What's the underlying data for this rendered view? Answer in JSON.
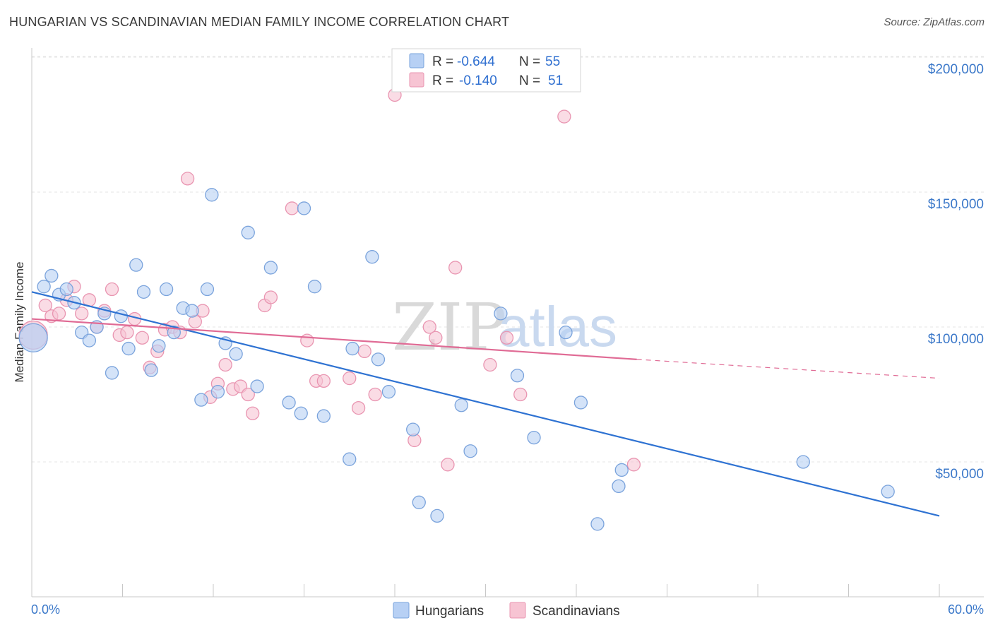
{
  "header": {
    "title": "HUNGARIAN VS SCANDINAVIAN MEDIAN FAMILY INCOME CORRELATION CHART",
    "source": "Source: ZipAtlas.com"
  },
  "watermark": {
    "zip": "ZIP",
    "atlas": "atlas"
  },
  "legend": {
    "r_label": "R =",
    "n_label": "N =",
    "series": [
      {
        "name": "Hungarians",
        "r": "-0.644",
        "n": "55"
      },
      {
        "name": "Scandinavians",
        "r": "-0.140",
        "n": "51"
      }
    ]
  },
  "colors": {
    "hungarian_fill": "#b7d0f4",
    "hungarian_stroke": "#7aa3dc",
    "hungarian_line": "#2e72d2",
    "scandinavian_fill": "#f7c4d3",
    "scandinavian_stroke": "#e995b1",
    "scandinavian_line": "#e06b95",
    "tick_text": "#3b78c9",
    "grid": "#e4e4e4"
  },
  "chart_data": {
    "type": "scatter",
    "title": "HUNGARIAN VS SCANDINAVIAN MEDIAN FAMILY INCOME CORRELATION CHART",
    "xlabel": "",
    "ylabel": "Median Family Income",
    "xlim": [
      0,
      60
    ],
    "ylim": [
      0,
      200000
    ],
    "x_tick_labels": [
      "0.0%",
      "60.0%"
    ],
    "y_ticks": [
      50000,
      100000,
      150000,
      200000
    ],
    "y_tick_labels": [
      "$50,000",
      "$100,000",
      "$150,000",
      "$200,000"
    ],
    "series": [
      {
        "name": "Hungarians",
        "trend": {
          "x": [
            0,
            60
          ],
          "y": [
            113000,
            30000
          ]
        },
        "points": [
          {
            "x": 0.1,
            "y": 96000,
            "big": true
          },
          {
            "x": 0.8,
            "y": 115000
          },
          {
            "x": 1.3,
            "y": 119000
          },
          {
            "x": 1.8,
            "y": 112000
          },
          {
            "x": 2.3,
            "y": 114000
          },
          {
            "x": 2.8,
            "y": 109000
          },
          {
            "x": 3.3,
            "y": 98000
          },
          {
            "x": 3.8,
            "y": 95000
          },
          {
            "x": 4.3,
            "y": 100000
          },
          {
            "x": 4.8,
            "y": 105000
          },
          {
            "x": 5.3,
            "y": 83000
          },
          {
            "x": 5.9,
            "y": 104000
          },
          {
            "x": 6.4,
            "y": 92000
          },
          {
            "x": 6.9,
            "y": 123000
          },
          {
            "x": 7.4,
            "y": 113000
          },
          {
            "x": 7.9,
            "y": 84000
          },
          {
            "x": 8.4,
            "y": 93000
          },
          {
            "x": 8.9,
            "y": 114000
          },
          {
            "x": 9.4,
            "y": 98000
          },
          {
            "x": 10.0,
            "y": 107000
          },
          {
            "x": 10.6,
            "y": 106000
          },
          {
            "x": 11.2,
            "y": 73000
          },
          {
            "x": 11.6,
            "y": 114000
          },
          {
            "x": 11.9,
            "y": 149000
          },
          {
            "x": 12.3,
            "y": 76000
          },
          {
            "x": 12.8,
            "y": 94000
          },
          {
            "x": 13.5,
            "y": 90000
          },
          {
            "x": 14.3,
            "y": 135000
          },
          {
            "x": 14.9,
            "y": 78000
          },
          {
            "x": 15.8,
            "y": 122000
          },
          {
            "x": 17.0,
            "y": 72000
          },
          {
            "x": 17.8,
            "y": 68000
          },
          {
            "x": 18.0,
            "y": 144000
          },
          {
            "x": 18.7,
            "y": 115000
          },
          {
            "x": 19.3,
            "y": 67000
          },
          {
            "x": 21.0,
            "y": 51000
          },
          {
            "x": 21.2,
            "y": 92000
          },
          {
            "x": 22.5,
            "y": 126000
          },
          {
            "x": 22.9,
            "y": 88000
          },
          {
            "x": 23.6,
            "y": 76000
          },
          {
            "x": 25.2,
            "y": 62000
          },
          {
            "x": 25.6,
            "y": 35000
          },
          {
            "x": 26.8,
            "y": 30000
          },
          {
            "x": 28.4,
            "y": 71000
          },
          {
            "x": 29.0,
            "y": 54000
          },
          {
            "x": 31.0,
            "y": 105000
          },
          {
            "x": 32.1,
            "y": 82000
          },
          {
            "x": 33.2,
            "y": 59000
          },
          {
            "x": 35.3,
            "y": 98000
          },
          {
            "x": 36.3,
            "y": 72000
          },
          {
            "x": 37.4,
            "y": 27000
          },
          {
            "x": 38.8,
            "y": 41000
          },
          {
            "x": 39.0,
            "y": 47000
          },
          {
            "x": 51.0,
            "y": 50000
          },
          {
            "x": 56.6,
            "y": 39000
          }
        ]
      },
      {
        "name": "Scandinavians",
        "trend": {
          "x": [
            0,
            40
          ],
          "y": [
            103000,
            88000
          ]
        },
        "trend_dashed": {
          "x": [
            40,
            60
          ],
          "y": [
            88000,
            81000
          ]
        },
        "points": [
          {
            "x": 0.1,
            "y": 97000,
            "big": true
          },
          {
            "x": 0.9,
            "y": 108000
          },
          {
            "x": 1.3,
            "y": 104000
          },
          {
            "x": 1.8,
            "y": 105000
          },
          {
            "x": 2.3,
            "y": 110000
          },
          {
            "x": 2.8,
            "y": 115000
          },
          {
            "x": 3.3,
            "y": 105000
          },
          {
            "x": 3.8,
            "y": 110000
          },
          {
            "x": 4.3,
            "y": 100000
          },
          {
            "x": 4.8,
            "y": 106000
          },
          {
            "x": 5.3,
            "y": 114000
          },
          {
            "x": 5.8,
            "y": 97000
          },
          {
            "x": 6.3,
            "y": 98000
          },
          {
            "x": 6.8,
            "y": 103000
          },
          {
            "x": 7.3,
            "y": 96000
          },
          {
            "x": 7.8,
            "y": 85000
          },
          {
            "x": 8.3,
            "y": 91000
          },
          {
            "x": 8.8,
            "y": 99000
          },
          {
            "x": 9.3,
            "y": 100000
          },
          {
            "x": 9.8,
            "y": 98000
          },
          {
            "x": 10.3,
            "y": 155000
          },
          {
            "x": 10.8,
            "y": 102000
          },
          {
            "x": 11.3,
            "y": 106000
          },
          {
            "x": 11.8,
            "y": 74000
          },
          {
            "x": 12.3,
            "y": 79000
          },
          {
            "x": 12.8,
            "y": 86000
          },
          {
            "x": 13.3,
            "y": 77000
          },
          {
            "x": 13.8,
            "y": 78000
          },
          {
            "x": 14.3,
            "y": 75000
          },
          {
            "x": 14.6,
            "y": 68000
          },
          {
            "x": 15.4,
            "y": 108000
          },
          {
            "x": 15.8,
            "y": 111000
          },
          {
            "x": 17.2,
            "y": 144000
          },
          {
            "x": 18.2,
            "y": 95000
          },
          {
            "x": 18.8,
            "y": 80000
          },
          {
            "x": 19.3,
            "y": 80000
          },
          {
            "x": 21.0,
            "y": 81000
          },
          {
            "x": 21.6,
            "y": 70000
          },
          {
            "x": 22.0,
            "y": 91000
          },
          {
            "x": 22.7,
            "y": 75000
          },
          {
            "x": 24.0,
            "y": 186000
          },
          {
            "x": 26.3,
            "y": 100000
          },
          {
            "x": 26.7,
            "y": 96000
          },
          {
            "x": 27.5,
            "y": 49000
          },
          {
            "x": 28.0,
            "y": 122000
          },
          {
            "x": 25.3,
            "y": 58000
          },
          {
            "x": 30.3,
            "y": 86000
          },
          {
            "x": 31.4,
            "y": 96000
          },
          {
            "x": 32.3,
            "y": 75000
          },
          {
            "x": 35.2,
            "y": 178000
          },
          {
            "x": 39.8,
            "y": 49000
          }
        ]
      }
    ]
  }
}
